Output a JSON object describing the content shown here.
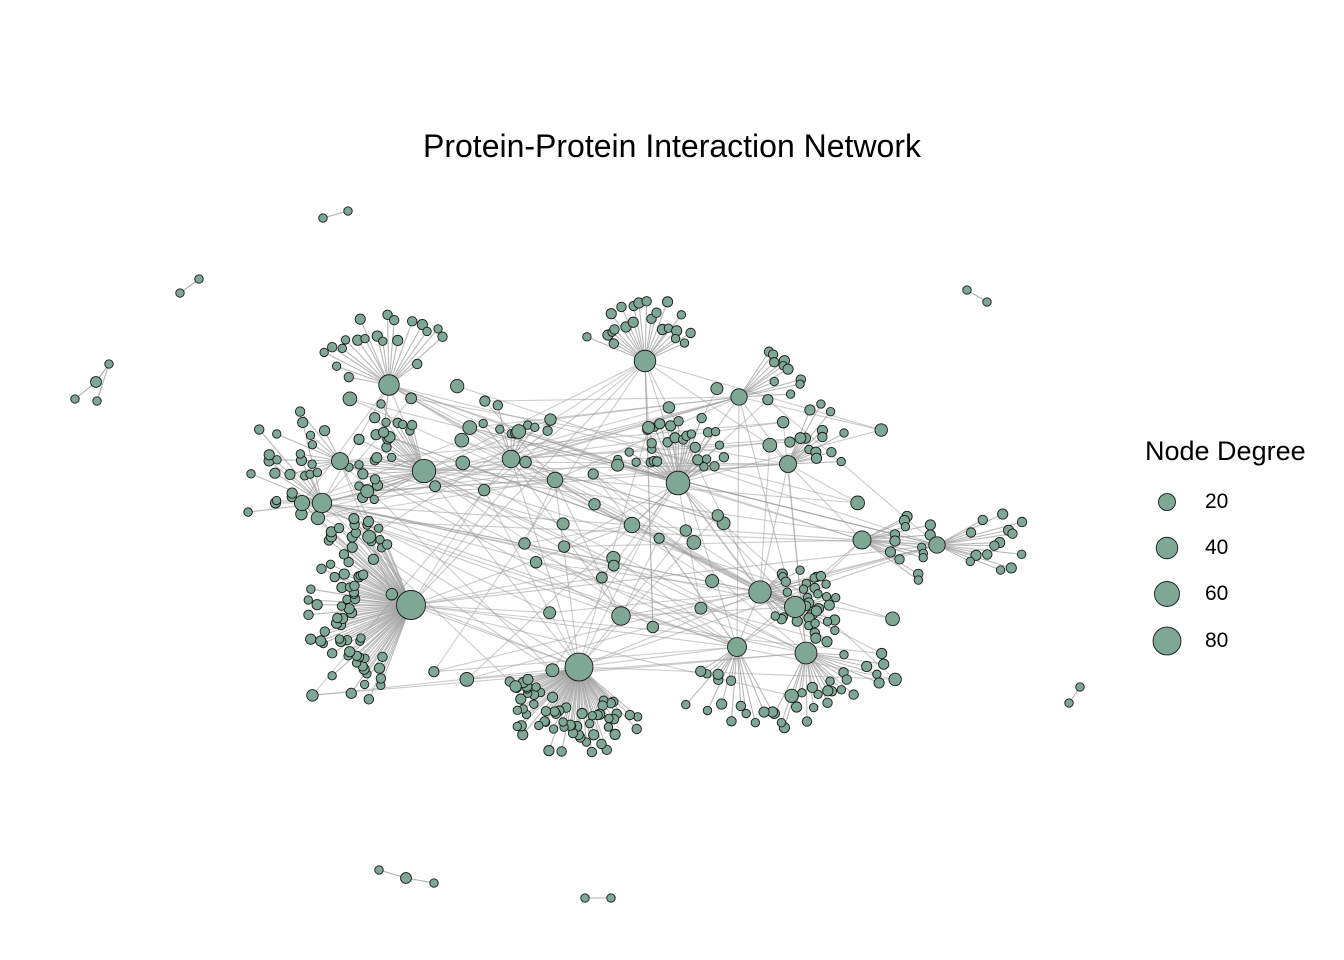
{
  "title": "Protein-Protein Interaction Network",
  "colors": {
    "node_fill": "#7fa796",
    "node_stroke": "#1a1a1a",
    "edge": "#9a9a9a"
  },
  "legend": {
    "title": "Node Degree",
    "entries": [
      {
        "label": "20",
        "degree": 20
      },
      {
        "label": "40",
        "degree": 40
      },
      {
        "label": "60",
        "degree": 60
      },
      {
        "label": "80",
        "degree": 80
      }
    ]
  },
  "hubs": [
    {
      "id": "hub-a",
      "degree": 88
    },
    {
      "id": "hub-b",
      "degree": 80
    },
    {
      "id": "hub-c",
      "degree": 52
    },
    {
      "id": "hub-d",
      "degree": 50
    },
    {
      "id": "hub-e",
      "degree": 45
    },
    {
      "id": "hub-f",
      "degree": 42
    },
    {
      "id": "hub-g",
      "degree": 40
    },
    {
      "id": "hub-h",
      "degree": 38
    },
    {
      "id": "hub-i",
      "degree": 35
    },
    {
      "id": "hub-j",
      "degree": 30
    },
    {
      "id": "hub-k",
      "degree": 28
    },
    {
      "id": "hub-l",
      "degree": 26
    },
    {
      "id": "hub-m",
      "degree": 24
    },
    {
      "id": "hub-n",
      "degree": 22
    },
    {
      "id": "hub-o",
      "degree": 20
    },
    {
      "id": "hub-p",
      "degree": 20
    },
    {
      "id": "hub-q",
      "degree": 18
    },
    {
      "id": "hub-r",
      "degree": 18
    },
    {
      "id": "hub-s",
      "degree": 15
    },
    {
      "id": "hub-t",
      "degree": 15
    },
    {
      "id": "hub-u",
      "degree": 14
    }
  ]
}
